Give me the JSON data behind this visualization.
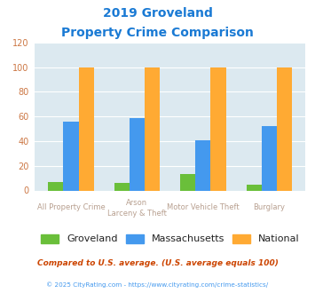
{
  "title_line1": "2019 Groveland",
  "title_line2": "Property Crime Comparison",
  "cat_labels_line1": [
    "All Property Crime",
    "Arson",
    "Motor Vehicle Theft",
    "Burglary"
  ],
  "cat_labels_line2": [
    "",
    "Larceny & Theft",
    "",
    ""
  ],
  "groveland": [
    7,
    6,
    13,
    5
  ],
  "massachusetts": [
    56,
    59,
    41,
    52
  ],
  "national": [
    100,
    100,
    100,
    100
  ],
  "groveland_color": "#6abf3a",
  "massachusetts_color": "#4499ee",
  "national_color": "#ffaa33",
  "bg_color": "#dce9f0",
  "title_color": "#1a7ad4",
  "xlabel_color": "#b8a090",
  "ytick_color": "#cc7744",
  "legend_text_color": "#222222",
  "compare_text": "Compared to U.S. average. (U.S. average equals 100)",
  "compare_color": "#cc4400",
  "footer_text": "© 2025 CityRating.com - https://www.cityrating.com/crime-statistics/",
  "footer_color": "#4499ee",
  "ylim": [
    0,
    120
  ],
  "yticks": [
    0,
    20,
    40,
    60,
    80,
    100,
    120
  ],
  "legend_labels": [
    "Groveland",
    "Massachusetts",
    "National"
  ],
  "bar_width": 0.23
}
